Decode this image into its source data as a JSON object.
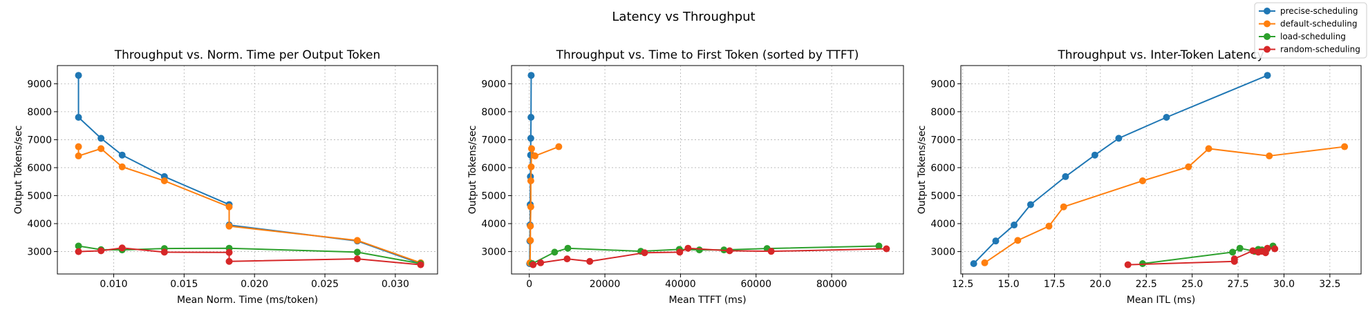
{
  "figure": {
    "suptitle": "Latency vs Throughput"
  },
  "legend": {
    "entries": [
      {
        "name": "precise-scheduling",
        "color": "#1f77b4"
      },
      {
        "name": "default-scheduling",
        "color": "#ff7f0e"
      },
      {
        "name": "load-scheduling",
        "color": "#2ca02c"
      },
      {
        "name": "random-scheduling",
        "color": "#d62728"
      }
    ]
  },
  "chart_data": [
    {
      "type": "line",
      "title": "Throughput vs. Norm. Time per Output Token",
      "xlabel": "Mean Norm. Time (ms/token)",
      "ylabel": "Output Tokens/sec",
      "xlim": [
        0.006,
        0.033
      ],
      "ylim": [
        2200,
        9650
      ],
      "xticks": [
        0.01,
        0.015,
        0.02,
        0.025,
        0.03
      ],
      "xtick_labels": [
        "0.010",
        "0.015",
        "0.020",
        "0.025",
        "0.030"
      ],
      "yticks": [
        3000,
        4000,
        5000,
        6000,
        7000,
        8000,
        9000
      ],
      "ytick_labels": [
        "3000",
        "4000",
        "5000",
        "6000",
        "7000",
        "8000",
        "9000"
      ],
      "grid": true,
      "series": [
        {
          "name": "precise-scheduling",
          "color": "#1f77b4",
          "x": [
            0.0075,
            0.0075,
            0.0091,
            0.0106,
            0.0136,
            0.0182,
            0.0182,
            0.0273,
            0.0318
          ],
          "y": [
            9300,
            7800,
            7050,
            6450,
            5680,
            4680,
            3950,
            3380,
            2570
          ]
        },
        {
          "name": "default-scheduling",
          "color": "#ff7f0e",
          "x": [
            0.0075,
            0.0075,
            0.0091,
            0.0106,
            0.0136,
            0.0182,
            0.0182,
            0.0273,
            0.0318
          ],
          "y": [
            6750,
            6420,
            6680,
            6030,
            5530,
            4600,
            3910,
            3400,
            2600
          ]
        },
        {
          "name": "load-scheduling",
          "color": "#2ca02c",
          "x": [
            0.0075,
            0.0091,
            0.0106,
            0.0136,
            0.0182,
            0.0273,
            0.0318
          ],
          "y": [
            3200,
            3070,
            3060,
            3110,
            3120,
            2980,
            2570
          ]
        },
        {
          "name": "random-scheduling",
          "color": "#d62728",
          "x": [
            0.0075,
            0.0091,
            0.0106,
            0.0136,
            0.0182,
            0.0182,
            0.0273,
            0.0318
          ],
          "y": [
            3000,
            3030,
            3130,
            2980,
            2970,
            2650,
            2740,
            2530
          ]
        }
      ]
    },
    {
      "type": "line",
      "title": "Throughput vs. Time to First Token (sorted by TTFT)",
      "xlabel": "Mean TTFT (ms)",
      "ylabel": "Output Tokens/sec",
      "xlim": [
        -4700,
        99000
      ],
      "ylim": [
        2200,
        9650
      ],
      "xticks": [
        0,
        20000,
        40000,
        60000,
        80000
      ],
      "xtick_labels": [
        "0",
        "20000",
        "40000",
        "60000",
        "80000"
      ],
      "yticks": [
        3000,
        4000,
        5000,
        6000,
        7000,
        8000,
        9000
      ],
      "ytick_labels": [
        "3000",
        "4000",
        "5000",
        "6000",
        "7000",
        "8000",
        "9000"
      ],
      "grid": true,
      "series": [
        {
          "name": "precise-scheduling",
          "color": "#1f77b4",
          "x": [
            100,
            150,
            200,
            250,
            300,
            350,
            400,
            450,
            500
          ],
          "y": [
            2570,
            3380,
            3950,
            4680,
            5680,
            6450,
            7050,
            7800,
            9300
          ]
        },
        {
          "name": "default-scheduling",
          "color": "#ff7f0e",
          "x": [
            200,
            300,
            300,
            400,
            400,
            500,
            600,
            1500,
            7800
          ],
          "y": [
            2600,
            3400,
            3910,
            4600,
            5530,
            6030,
            6680,
            6420,
            6750
          ]
        },
        {
          "name": "load-scheduling",
          "color": "#2ca02c",
          "x": [
            800,
            6700,
            10200,
            29500,
            39700,
            45000,
            51500,
            62900,
            92500
          ],
          "y": [
            2570,
            2980,
            3120,
            3010,
            3080,
            3060,
            3060,
            3110,
            3200
          ]
        },
        {
          "name": "random-scheduling",
          "color": "#d62728",
          "x": [
            1000,
            3000,
            10000,
            16000,
            30500,
            39800,
            42000,
            53000,
            64000,
            94500
          ],
          "y": [
            2530,
            2600,
            2740,
            2650,
            2960,
            2980,
            3120,
            3030,
            3010,
            3100
          ]
        }
      ]
    },
    {
      "type": "line",
      "title": "Throughput vs. Inter-Token Latency",
      "xlabel": "Mean ITL (ms)",
      "ylabel": "Output Tokens/sec",
      "xlim": [
        12.4,
        34.2
      ],
      "ylim": [
        2200,
        9650
      ],
      "xticks": [
        12.5,
        15.0,
        17.5,
        20.0,
        22.5,
        25.0,
        27.5,
        30.0,
        32.5
      ],
      "xtick_labels": [
        "12.5",
        "15.0",
        "17.5",
        "20.0",
        "22.5",
        "25.0",
        "27.5",
        "30.0",
        "32.5"
      ],
      "yticks": [
        3000,
        4000,
        5000,
        6000,
        7000,
        8000,
        9000
      ],
      "ytick_labels": [
        "3000",
        "4000",
        "5000",
        "6000",
        "7000",
        "8000",
        "9000"
      ],
      "grid": true,
      "series": [
        {
          "name": "precise-scheduling",
          "color": "#1f77b4",
          "x": [
            13.1,
            14.3,
            15.3,
            16.2,
            18.1,
            19.7,
            21.0,
            23.6,
            29.1
          ],
          "y": [
            2570,
            3380,
            3950,
            4680,
            5680,
            6450,
            7050,
            7800,
            9300
          ]
        },
        {
          "name": "default-scheduling",
          "color": "#ff7f0e",
          "x": [
            13.7,
            15.5,
            17.2,
            18.0,
            22.3,
            24.8,
            25.9,
            29.2,
            33.3
          ],
          "y": [
            2600,
            3400,
            3910,
            4600,
            5530,
            6030,
            6680,
            6420,
            6750
          ]
        },
        {
          "name": "load-scheduling",
          "color": "#2ca02c",
          "x": [
            22.3,
            27.2,
            27.6,
            28.4,
            28.6,
            28.8,
            29.1,
            29.4
          ],
          "y": [
            2570,
            2980,
            3120,
            3010,
            3080,
            3060,
            3110,
            3200
          ]
        },
        {
          "name": "random-scheduling",
          "color": "#d62728",
          "x": [
            21.5,
            27.3,
            27.3,
            28.3,
            28.6,
            28.8,
            29.0,
            29.1,
            29.5
          ],
          "y": [
            2530,
            2650,
            2740,
            3030,
            2980,
            3010,
            2960,
            3120,
            3100
          ]
        }
      ]
    }
  ]
}
